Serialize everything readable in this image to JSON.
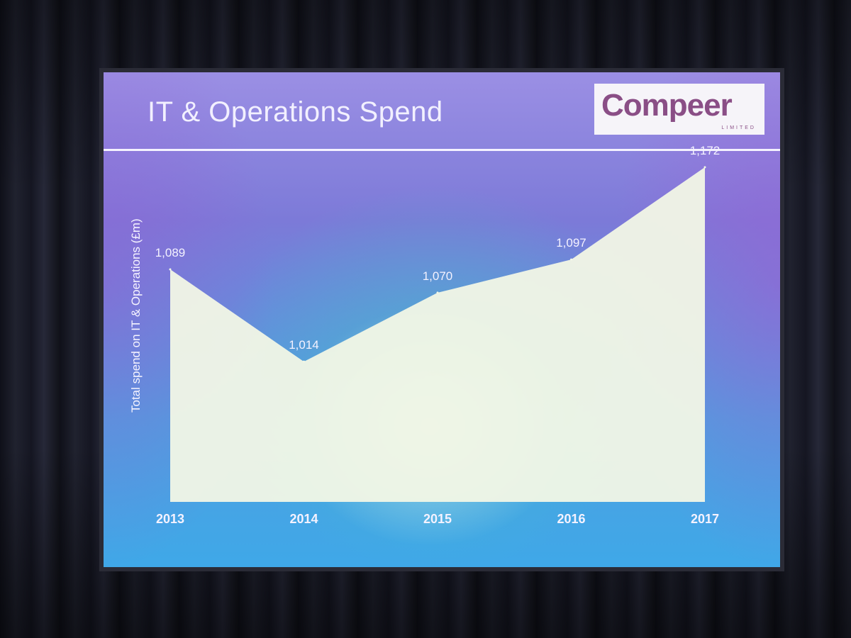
{
  "slide": {
    "title": "IT & Operations Spend",
    "logo": {
      "word": "Compeer",
      "sub": "LIMITED",
      "color": "#8a4e86"
    }
  },
  "chart_data": {
    "type": "area",
    "title": "IT & Operations Spend",
    "xlabel": "",
    "ylabel": "Total spend on IT & Operations (£m)",
    "categories": [
      "2013",
      "2014",
      "2015",
      "2016",
      "2017"
    ],
    "values": [
      1089,
      1014,
      1070,
      1097,
      1172
    ],
    "data_labels": [
      "1,089",
      "1,014",
      "1,070",
      "1,097",
      "1,172"
    ],
    "ylim": [
      900,
      1180
    ],
    "grid": false,
    "area_color": "#f2f7e6",
    "text_color": "#f4f2ff"
  }
}
